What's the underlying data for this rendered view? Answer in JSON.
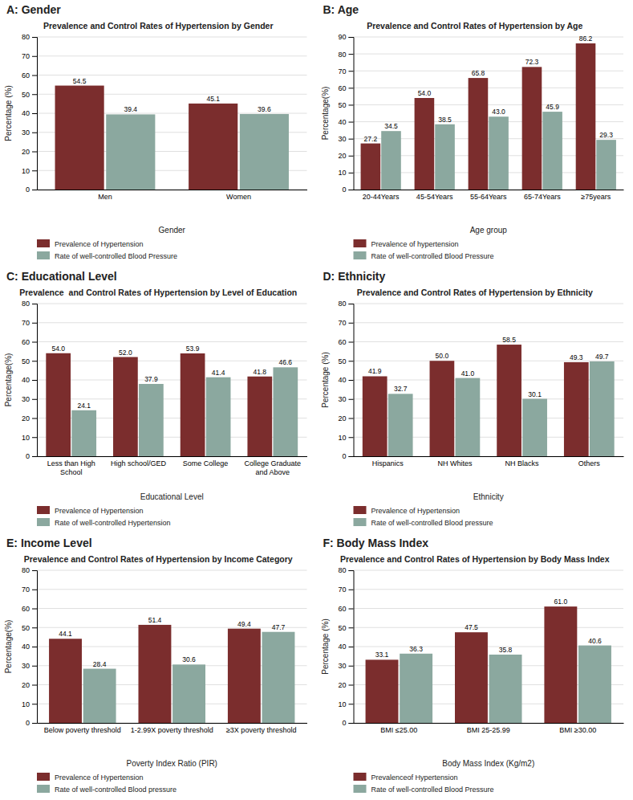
{
  "chart_data": [
    {
      "type": "bar",
      "subtitle": "A: Gender",
      "title": "Prevalence and Control Rates of Hypertension by Gender",
      "xlabel": "Gender",
      "ylabel": "Percentage (%)",
      "categories": [
        "Men",
        "Women"
      ],
      "series": [
        {
          "name": "Prevalence of Hypertension",
          "color": "#7B2D2D",
          "values": [
            54.5,
            45.1
          ],
          "value_labels": [
            "54.5",
            "45.1"
          ]
        },
        {
          "name": "Rate of well-controlled Blood Pressure",
          "color": "#8BA89F",
          "values": [
            39.4,
            39.6
          ],
          "value_labels": [
            "39.4",
            "39.6"
          ]
        }
      ],
      "ylim": [
        0,
        80
      ],
      "yticks": [
        0,
        10,
        20,
        30,
        40,
        50,
        60,
        70,
        80
      ],
      "grid": true,
      "legend": "bottom",
      "data_labels": true
    },
    {
      "type": "bar",
      "subtitle": "B: Age",
      "title": "Prevalence and Control Rates of Hypertension by Age",
      "xlabel": "Age group",
      "ylabel": "Percentage(%)",
      "categories": [
        "20-44Years",
        "45-54Years",
        "55-64Years",
        "65-74Years",
        "≥75years"
      ],
      "series": [
        {
          "name": "Prevalence of hypertension",
          "color": "#7B2D2D",
          "values": [
            27.2,
            54.0,
            65.8,
            72.3,
            86.2
          ],
          "value_labels": [
            "27.2",
            "54.0",
            "65.8",
            "72.3",
            "86.2"
          ]
        },
        {
          "name": "Rate of well-controlled Blood Pressure",
          "color": "#8BA89F",
          "values": [
            34.5,
            38.5,
            43.0,
            45.9,
            29.3
          ],
          "value_labels": [
            "34.5",
            "38.5",
            "43.0",
            "45.9",
            "29.3"
          ]
        }
      ],
      "ylim": [
        0,
        90
      ],
      "yticks": [
        0,
        10,
        20,
        30,
        40,
        50,
        60,
        70,
        80,
        90
      ],
      "grid": true,
      "legend": "bottom",
      "data_labels": true
    },
    {
      "type": "bar",
      "subtitle": "C: Educational Level",
      "title": "Prevalence  and Control Rates of Hypertension by Level of Education",
      "xlabel": "Educational Level",
      "ylabel": "Percentage(%)",
      "categories": [
        "Less than High School",
        "High school/GED",
        "Some College",
        "College Graduate and Above"
      ],
      "series": [
        {
          "name": "Prevalence of Hypertension",
          "color": "#7B2D2D",
          "values": [
            54.0,
            52.0,
            53.9,
            41.8
          ],
          "value_labels": [
            "54.0",
            "52.0",
            "53.9",
            "41.8"
          ]
        },
        {
          "name": "Rate of well-controlled Hypertension",
          "color": "#8BA89F",
          "values": [
            24.1,
            37.9,
            41.4,
            46.6
          ],
          "value_labels": [
            "24.1",
            "37.9",
            "41.4",
            "46.6"
          ]
        }
      ],
      "ylim": [
        0,
        80
      ],
      "yticks": [
        0,
        10,
        20,
        30,
        40,
        50,
        60,
        70,
        80
      ],
      "grid": true,
      "legend": "bottom",
      "data_labels": true
    },
    {
      "type": "bar",
      "subtitle": "D: Ethnicity",
      "title": "Prevalence and Control Rates of Hypertension by Ethnicity",
      "xlabel": "Ethnicity",
      "ylabel": "Percentage (%)",
      "categories": [
        "Hispanics",
        "NH Whites",
        "NH Blacks",
        "Others"
      ],
      "series": [
        {
          "name": "Prevalence of Hypertension",
          "color": "#7B2D2D",
          "values": [
            41.9,
            50.0,
            58.5,
            49.3
          ],
          "value_labels": [
            "41.9",
            "50.0",
            "58.5",
            "49.3"
          ]
        },
        {
          "name": "Rate of well-controlled Blood pressure",
          "color": "#8BA89F",
          "values": [
            32.7,
            41.0,
            30.1,
            49.7
          ],
          "value_labels": [
            "32.7",
            "41.0",
            "30.1",
            "49.7"
          ]
        }
      ],
      "ylim": [
        0,
        80
      ],
      "yticks": [
        0,
        10,
        20,
        30,
        40,
        50,
        60,
        70,
        80
      ],
      "grid": true,
      "legend": "bottom",
      "data_labels": true
    },
    {
      "type": "bar",
      "subtitle": "E: Income Level",
      "title": "Prevalence and Control Rates of Hypertension by Income Category",
      "xlabel": "Poverty Index Ratio (PIR)",
      "ylabel": "Percentage(%)",
      "categories": [
        "Below poverty threshold",
        "1-2.99X poverty threshold",
        "≥3X poverty threshold"
      ],
      "series": [
        {
          "name": "Prevalence of Hypertension",
          "color": "#7B2D2D",
          "values": [
            44.1,
            51.4,
            49.4
          ],
          "value_labels": [
            "44.1",
            "51.4",
            "49.4"
          ]
        },
        {
          "name": "Rate of well-controlled Blood pressure",
          "color": "#8BA89F",
          "values": [
            28.4,
            30.6,
            47.7
          ],
          "value_labels": [
            "28.4",
            "30.6",
            "47.7"
          ]
        }
      ],
      "ylim": [
        0,
        80
      ],
      "yticks": [
        0,
        10,
        20,
        30,
        40,
        50,
        60,
        70,
        80
      ],
      "grid": true,
      "legend": "bottom",
      "data_labels": true
    },
    {
      "type": "bar",
      "subtitle": "F: Body Mass Index",
      "title": "Prevalence and Control Rates of Hypertension by Body Mass Index",
      "xlabel": "Body Mass Index (Kg/m2)",
      "ylabel": "Percentage (%)",
      "categories": [
        "BMI ≤25.00",
        "BMI 25-25.99",
        "BMI ≥30.00"
      ],
      "series": [
        {
          "name": "Prevalenceof Hypertension",
          "color": "#7B2D2D",
          "values": [
            33.1,
            47.5,
            61.0
          ],
          "value_labels": [
            "33.1",
            "47.5",
            "61.0"
          ]
        },
        {
          "name": "Rate of well-controlled Blood Pressure",
          "color": "#8BA89F",
          "values": [
            36.3,
            35.8,
            40.6
          ],
          "value_labels": [
            "36.3",
            "35.8",
            "40.6"
          ]
        }
      ],
      "ylim": [
        0,
        80
      ],
      "yticks": [
        0,
        10,
        20,
        30,
        40,
        50,
        60,
        70,
        80
      ],
      "grid": true,
      "legend": "bottom",
      "data_labels": true
    }
  ]
}
